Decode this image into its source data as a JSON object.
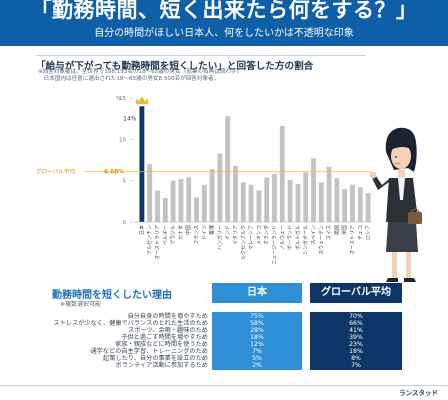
{
  "header": {
    "title": "「勤務時間、短く出来たら何をする？」",
    "subtitle": "自分の時間がほしい日本人、何をしたいかは不透明な印象"
  },
  "chart_section": {
    "title": "「給与が下がっても勤務時間を短くしたい」と回答した方の割合",
    "note_line1": "※回答対象者は、全世界で198,193名の18〜65歳の男女（就業の有無は問わず）",
    "note_line2": "　日本国内は任意に選出された18〜65歳の男女8,500名が回答対象者。"
  },
  "colors": {
    "header": "#0f5fa8",
    "japan_bar": "#0d3566",
    "other_bar": "#c3c3c3",
    "global_line": "#f2b632",
    "crown": "#f2b632",
    "japan_col": "#2e8fd6",
    "global_col": "#0d3566"
  },
  "chart_data": {
    "type": "bar",
    "title": "「給与が下がっても勤務時間を短くしたい」と回答した方の割合",
    "ylim": [
      0,
      15
    ],
    "yticks": [
      "0",
      "5",
      "10",
      "15"
    ],
    "yunit": "%",
    "global_average": {
      "label": "グローバル平均",
      "value": 6.08,
      "value_label": "6.08%"
    },
    "highlight_label": "14%",
    "categories": [
      "日本",
      "アルゼンチン",
      "オーストラリア",
      "ベルギー",
      "ブラジル",
      "カナダ",
      "中国",
      "フランス",
      "ドイツ",
      "香港",
      "ハンガリー",
      "インド",
      "イタリア",
      "ルクセンブルク",
      "マレーシア",
      "メキシコ",
      "オランダ",
      "ニュージーランド",
      "ノルウェー",
      "ポーランド",
      "ポルトガル",
      "シンガポール",
      "スペイン",
      "スウェーデン",
      "スイス",
      "英国",
      "米国",
      "オーストリア",
      "チェコ",
      "ロシア"
    ],
    "values": [
      14,
      7,
      3.8,
      2.9,
      5,
      5.2,
      5.4,
      3,
      4.5,
      6.4,
      8.3,
      12.8,
      6.8,
      4.8,
      4.5,
      3.8,
      5.4,
      5.8,
      11.6,
      5.1,
      4.6,
      6,
      7.7,
      4.8,
      6.7,
      5.3,
      4,
      4.5,
      4.2,
      3.5
    ],
    "legend": "none",
    "grid": false
  },
  "reasons": {
    "title": "勤務時間を短くしたい理由",
    "subtitle": "※複数選択可能",
    "col_japan": "日本",
    "col_global": "グローバル平均",
    "rows": [
      {
        "label": "自分自身の時間を増やすため",
        "japan": "75%",
        "global": "70%"
      },
      {
        "label": "ストレスが少なく、健康でバランスのとれた生活のため",
        "japan": "58%",
        "global": "66%"
      },
      {
        "label": "スポーツ、余暇・趣味のため",
        "japan": "28%",
        "global": "41%"
      },
      {
        "label": "子供と過ごす時間を増やすため",
        "japan": "18%",
        "global": "39%"
      },
      {
        "label": "家族・親族などに時間を使うため",
        "japan": "12%",
        "global": "23%"
      },
      {
        "label": "通学などの自主学習、トレーニングのため",
        "japan": "7%",
        "global": "18%"
      },
      {
        "label": "起業したり、自分の事業を設立のため",
        "japan": "5%",
        "global": "8%"
      },
      {
        "label": "ボランティア活動に参加するため",
        "japan": "2%",
        "global": "7%"
      }
    ]
  },
  "brand": "ランスタッド"
}
